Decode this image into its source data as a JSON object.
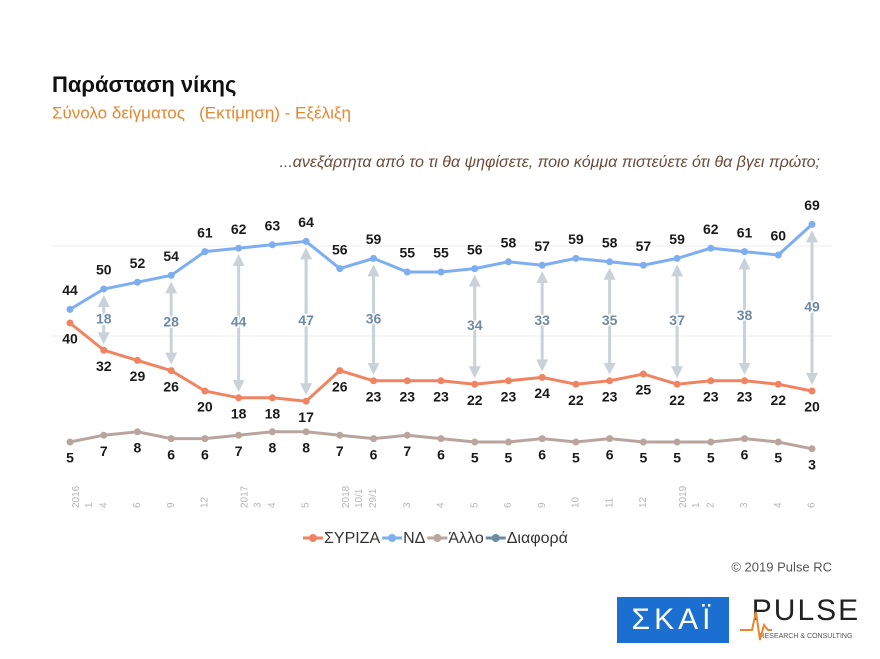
{
  "chart_data": {
    "type": "line",
    "title": "Παράσταση νίκης",
    "subtitle": "Σύνολο δείγματος   (Εκτίμηση) - Εξέλιξη",
    "question": "...ανεξάρτητα από το τι θα ψηφίσετε, ποιο κόμμα πιστεύετε ότι θα βγει πρώτο;",
    "copyright": "© 2019 Pulse RC",
    "logos": {
      "skai": "ΣΚΑΪ",
      "pulse": "PULSE",
      "pulse_sub": "RESEARCH & CONSULTING"
    },
    "categories": [
      "2016 1",
      "4",
      "6",
      "9",
      "12",
      "2017 3",
      "4",
      "5",
      "2018 10/1",
      "29/1",
      "3",
      "4",
      "5",
      "6",
      "9",
      "10",
      "11",
      "12",
      "2019 1",
      "2",
      "3",
      "4",
      "6"
    ],
    "ylim": [
      0,
      75
    ],
    "series": [
      {
        "name": "ΣΥΡΙΖΑ",
        "color": "#f08462",
        "values": [
          40,
          32,
          29,
          26,
          20,
          18,
          18,
          17,
          26,
          23,
          23,
          23,
          22,
          23,
          24,
          22,
          23,
          25,
          22,
          23,
          23,
          22,
          20
        ]
      },
      {
        "name": "ΝΔ",
        "color": "#7eaef2",
        "values": [
          44,
          50,
          52,
          54,
          61,
          62,
          63,
          64,
          56,
          59,
          55,
          55,
          56,
          58,
          57,
          59,
          58,
          57,
          59,
          62,
          61,
          60,
          69
        ]
      },
      {
        "name": "Άλλο",
        "color": "#b9a59d",
        "values": [
          5,
          7,
          8,
          6,
          6,
          7,
          8,
          8,
          7,
          6,
          7,
          6,
          5,
          5,
          6,
          5,
          6,
          5,
          5,
          5,
          6,
          5,
          3
        ]
      },
      {
        "name": "Διαφορά",
        "color": "#6f8aa3",
        "values": [
          null,
          18,
          null,
          28,
          null,
          44,
          null,
          47,
          null,
          36,
          null,
          null,
          34,
          null,
          33,
          null,
          35,
          null,
          37,
          null,
          38,
          null,
          49
        ]
      }
    ]
  }
}
